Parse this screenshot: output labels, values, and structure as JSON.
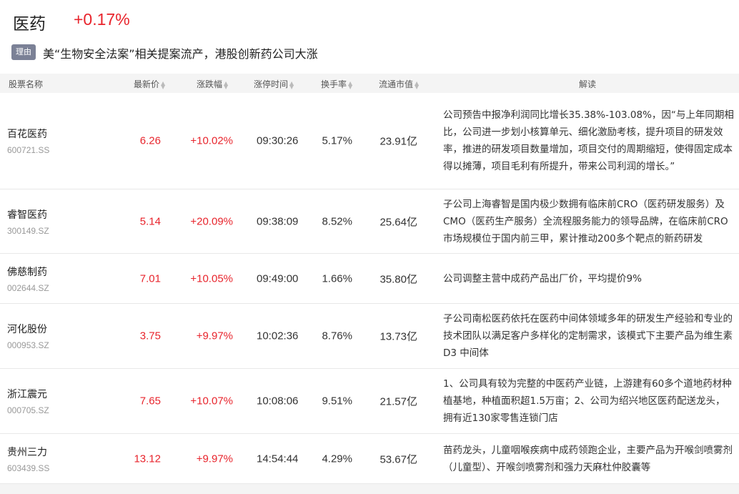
{
  "header": {
    "title": "医药",
    "change": "+0.17%",
    "badge": "理由",
    "reason": "美“生物安全法案”相关提案流产，港股创新药公司大涨"
  },
  "columns": [
    "股票名称",
    "最新价",
    "涨跌幅",
    "涨停时间",
    "换手率",
    "流通市值",
    "解读"
  ],
  "colors": {
    "up": "#e8242c",
    "badge": "#7b8196"
  },
  "rows": [
    {
      "name": "百花医药",
      "code": "600721.SS",
      "price": "6.26",
      "change": "+10.02%",
      "time": "09:30:26",
      "turnover": "5.17%",
      "mcap": "23.91亿",
      "desc": "公司预告中报净利润同比增长35.38%-103.08%，因“与上年同期相比，公司进一步划小核算单元、细化激励考核，提升项目的研发效率，推进的研发项目数量增加，项目交付的周期缩短，使得固定成本得以摊薄，项目毛利有所提升，带来公司利润的增长。”"
    },
    {
      "name": "睿智医药",
      "code": "300149.SZ",
      "price": "5.14",
      "change": "+20.09%",
      "time": "09:38:09",
      "turnover": "8.52%",
      "mcap": "25.64亿",
      "desc": "子公司上海睿智是国内极少数拥有临床前CRO（医药研发服务）及CMO（医药生产服务）全流程服务能力的领导品牌，在临床前CRO市场规模位于国内前三甲，累计推动200多个靶点的新药研发"
    },
    {
      "name": "佛慈制药",
      "code": "002644.SZ",
      "price": "7.01",
      "change": "+10.05%",
      "time": "09:49:00",
      "turnover": "1.66%",
      "mcap": "35.80亿",
      "desc": "公司调整主营中成药产品出厂价，平均提价9%"
    },
    {
      "name": "河化股份",
      "code": "000953.SZ",
      "price": "3.75",
      "change": "+9.97%",
      "time": "10:02:36",
      "turnover": "8.76%",
      "mcap": "13.73亿",
      "desc": "子公司南松医药依托在医药中间体领域多年的研发生产经验和专业的技术团队以满足客户多样化的定制需求，该模式下主要产品为维生素 D3 中间体"
    },
    {
      "name": "浙江震元",
      "code": "000705.SZ",
      "price": "7.65",
      "change": "+10.07%",
      "time": "10:08:06",
      "turnover": "9.51%",
      "mcap": "21.57亿",
      "desc": "1、公司具有较为完整的中医药产业链，上游建有60多个道地药材种植基地，种植面积超1.5万亩；2、公司为绍兴地区医药配送龙头，拥有近130家零售连锁门店"
    },
    {
      "name": "贵州三力",
      "code": "603439.SS",
      "price": "13.12",
      "change": "+9.97%",
      "time": "14:54:44",
      "turnover": "4.29%",
      "mcap": "53.67亿",
      "desc": "苗药龙头，儿童咽喉疾病中成药领跑企业，主要产品为开喉剑喷雾剂（儿童型）、开喉剑喷雾剂和强力天麻杜仲胶囊等"
    }
  ]
}
